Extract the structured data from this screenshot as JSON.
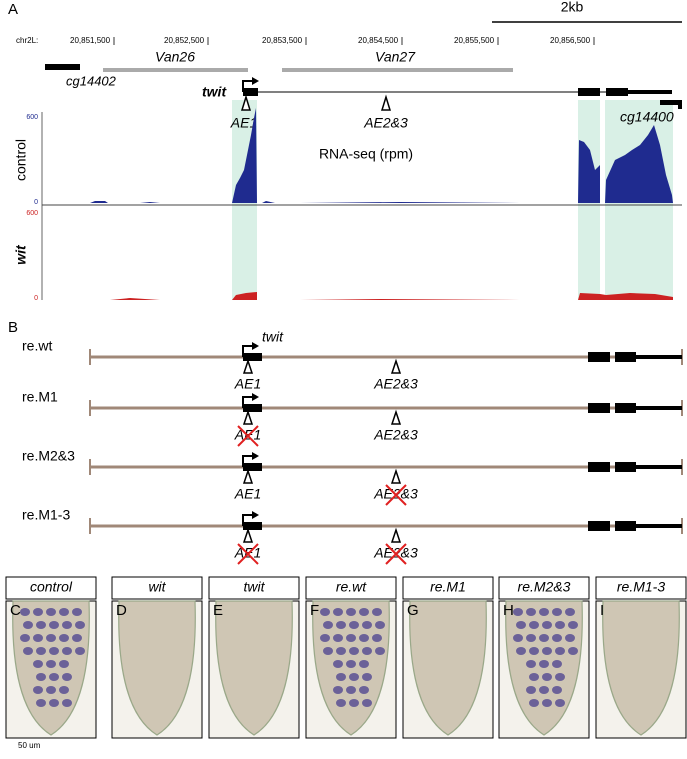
{
  "panel_a": {
    "label": "A",
    "scale_bar": "2kb",
    "chromosome": "chr2L:",
    "coordinates": [
      "20,851,500",
      "20,852,500",
      "20,853,500",
      "20,854,500",
      "20,855,500",
      "20,856,500"
    ],
    "regions": [
      "Van26",
      "Van27"
    ],
    "genes": [
      "twit",
      "cg14402",
      "cg14400"
    ],
    "elements": [
      "AE1",
      "AE2&3"
    ],
    "track_title": "RNA-seq (rpm)",
    "tracks": [
      {
        "name": "control",
        "max": 600,
        "min": 0
      },
      {
        "name": "wit",
        "max": 600,
        "min": 0
      }
    ]
  },
  "panel_b": {
    "label": "B",
    "gene": "twit",
    "elements": [
      "AE1",
      "AE2&3"
    ],
    "constructs": [
      {
        "name": "re.wt",
        "mutated": [
          false,
          false
        ]
      },
      {
        "name": "re.M1",
        "mutated": [
          true,
          false
        ]
      },
      {
        "name": "re.M2&3",
        "mutated": [
          false,
          true
        ]
      },
      {
        "name": "re.M1-3",
        "mutated": [
          true,
          true
        ]
      }
    ]
  },
  "panel_c": {
    "scale_bar": "50 um",
    "images": [
      {
        "letter": "C",
        "title": "control",
        "stained": true
      },
      {
        "letter": "D",
        "title": "wit",
        "stained": false
      },
      {
        "letter": "E",
        "title": "twit",
        "stained": false
      },
      {
        "letter": "F",
        "title": "re.wt",
        "stained": true
      },
      {
        "letter": "G",
        "title": "re.M1",
        "stained": false
      },
      {
        "letter": "H",
        "title": "re.M2&3",
        "stained": true
      },
      {
        "letter": "I",
        "title": "re.M1-3",
        "stained": false
      }
    ]
  }
}
